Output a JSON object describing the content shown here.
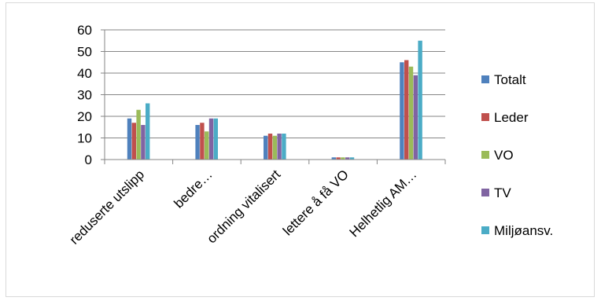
{
  "chart_data": {
    "type": "bar",
    "categories": [
      "reduserte utslipp",
      "bedre…",
      "ordning vitalisert",
      "lettere å få VO",
      "Helhetlig AM…"
    ],
    "series": [
      {
        "name": "Totalt",
        "color": "#4f81bd",
        "values": [
          19,
          16,
          11,
          1,
          45
        ]
      },
      {
        "name": "Leder",
        "color": "#c0504d",
        "values": [
          17,
          17,
          12,
          1,
          46
        ]
      },
      {
        "name": "VO",
        "color": "#9bbb59",
        "values": [
          23,
          13,
          11,
          1,
          43
        ]
      },
      {
        "name": "TV",
        "color": "#8064a2",
        "values": [
          16,
          19,
          12,
          1,
          39
        ]
      },
      {
        "name": "Miljøansv.",
        "color": "#4bacc6",
        "values": [
          26,
          19,
          12,
          1,
          55
        ]
      }
    ],
    "ylim": [
      0,
      60
    ],
    "yticks": [
      0,
      10,
      20,
      30,
      40,
      50,
      60
    ],
    "grid": true,
    "legend_position": "right"
  }
}
